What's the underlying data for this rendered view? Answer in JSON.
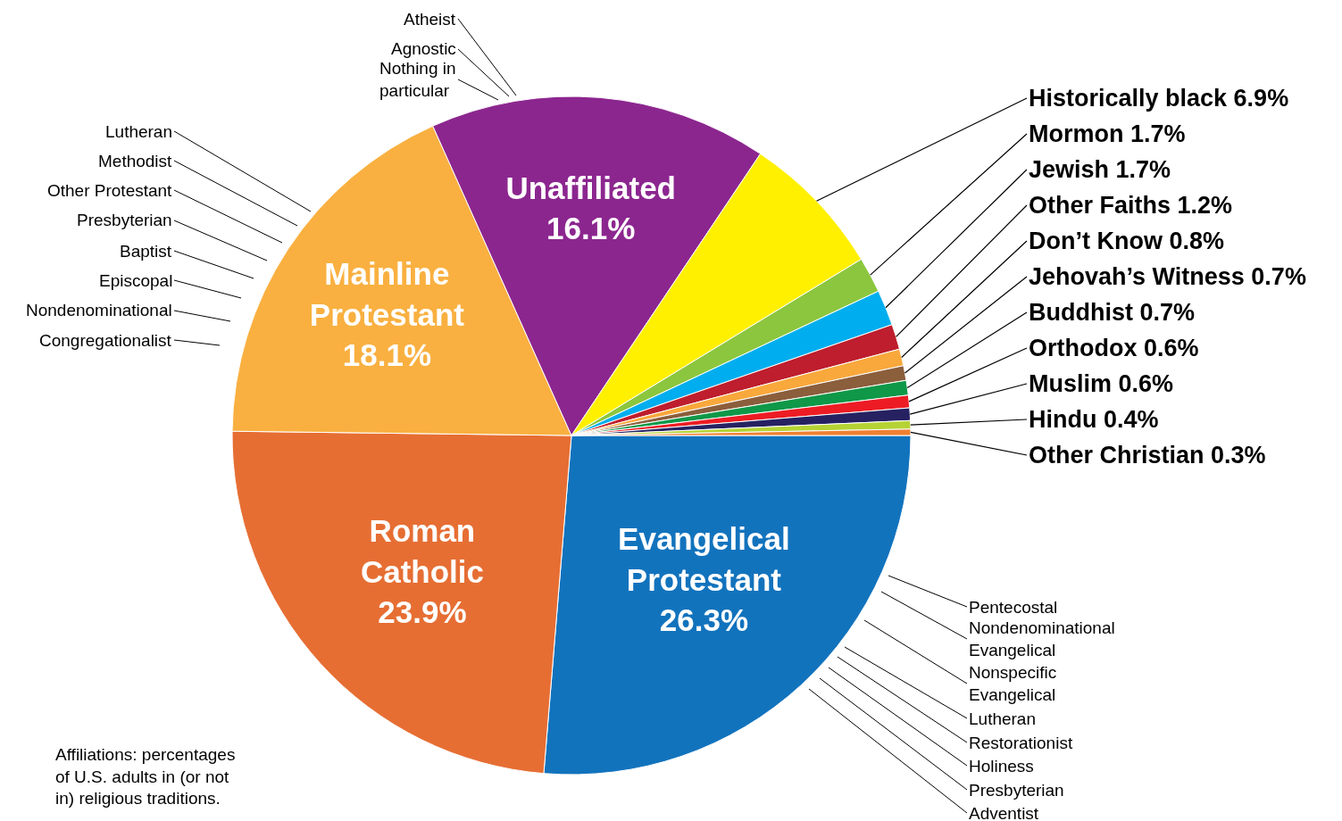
{
  "chart_data": {
    "type": "pie",
    "categories": [
      "Evangelical Protestant",
      "Roman Catholic",
      "Mainline Protestant",
      "Unaffiliated",
      "Historically black",
      "Mormon",
      "Jewish",
      "Other Faiths",
      "Don’t Know",
      "Jehovah’s Witness",
      "Buddhist",
      "Orthodox",
      "Muslim",
      "Hindu",
      "Other Christian"
    ],
    "values": [
      26.3,
      23.9,
      18.1,
      16.1,
      6.9,
      1.7,
      1.7,
      1.2,
      0.8,
      0.7,
      0.7,
      0.6,
      0.6,
      0.4,
      0.3
    ],
    "value_labels": [
      "26.3%",
      "23.9%",
      "18.1%",
      "16.1%",
      "6.9%",
      "1.7%",
      "1.7%",
      "1.2%",
      "0.8%",
      "0.7%",
      "0.7%",
      "0.6%",
      "0.6%",
      "0.4%",
      "0.3%"
    ],
    "colors": [
      "#1273bd",
      "#e66e33",
      "#f9b040",
      "#8c268f",
      "#fff000",
      "#8cc63e",
      "#00aeef",
      "#be1e2d",
      "#f9a83c",
      "#8b5e3c",
      "#0f9848",
      "#ed1c24",
      "#262262",
      "#b5d334",
      "#f08030"
    ],
    "annotations": [
      "Atheist",
      "Agnostic",
      "Nothing in particular",
      "Lutheran",
      "Methodist",
      "Other Protestant",
      "Presbyterian",
      "Baptist",
      "Episcopal",
      "Nondenominational",
      "Congregationalist",
      "Pentecostal",
      "Nondenominational Evangelical",
      "Nonspecific Evangelical",
      "Lutheran",
      "Restorationist",
      "Holiness",
      "Presbyterian",
      "Adventist",
      "Affiliations: percentages of U.S. adults in (or not in) religious traditions."
    ]
  }
}
